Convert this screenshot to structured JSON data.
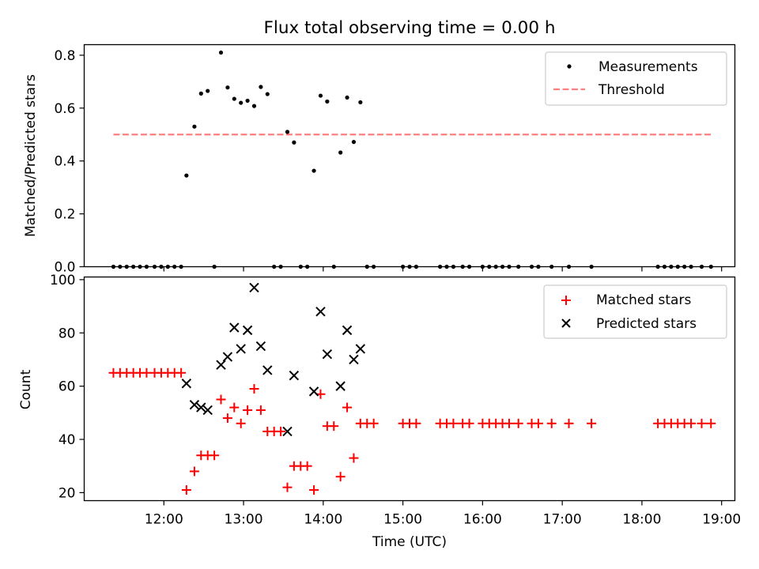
{
  "title": "Flux total observing time = 0.00 h",
  "chart_data": [
    {
      "type": "scatter",
      "panel": "top",
      "ylabel": "Matched/Predicted stars",
      "ylim": [
        0,
        0.84
      ],
      "yticks": [
        0.0,
        0.2,
        0.4,
        0.6,
        0.8
      ],
      "ytick_labels": [
        "0.0",
        "0.2",
        "0.4",
        "0.6",
        "0.8"
      ],
      "legend": {
        "position": "top-right",
        "entries": [
          {
            "label": "Measurements",
            "marker": "dot",
            "color": "#000000"
          },
          {
            "label": "Threshold",
            "marker": "dashed-line",
            "color": "#ff7f7f"
          }
        ]
      },
      "threshold": {
        "value": 0.5,
        "x_range": [
          "11:22",
          "18:52"
        ],
        "color": "#ff7f7f"
      },
      "series": [
        {
          "name": "Measurements",
          "color": "#000000",
          "points": [
            [
              "11:22",
              0
            ],
            [
              "11:27",
              0
            ],
            [
              "11:32",
              0
            ],
            [
              "11:37",
              0
            ],
            [
              "11:42",
              0
            ],
            [
              "11:47",
              0
            ],
            [
              "11:53",
              0
            ],
            [
              "11:58",
              0
            ],
            [
              "12:03",
              0
            ],
            [
              "12:08",
              0
            ],
            [
              "12:13",
              0
            ],
            [
              "12:17",
              0.345
            ],
            [
              "12:23",
              0.53
            ],
            [
              "12:28",
              0.655
            ],
            [
              "12:33",
              0.665
            ],
            [
              "12:38",
              0
            ],
            [
              "12:43",
              0.81
            ],
            [
              "12:48",
              0.678
            ],
            [
              "12:53",
              0.635
            ],
            [
              "12:58",
              0.62
            ],
            [
              "13:03",
              0.628
            ],
            [
              "13:08",
              0.608
            ],
            [
              "13:13",
              0.68
            ],
            [
              "13:18",
              0.653
            ],
            [
              "13:23",
              0
            ],
            [
              "13:28",
              0
            ],
            [
              "13:33",
              0.51
            ],
            [
              "13:38",
              0.47
            ],
            [
              "13:43",
              0
            ],
            [
              "13:48",
              0
            ],
            [
              "13:53",
              0.363
            ],
            [
              "13:58",
              0.647
            ],
            [
              "14:03",
              0.625
            ],
            [
              "14:08",
              0
            ],
            [
              "14:13",
              0.432
            ],
            [
              "14:18",
              0.64
            ],
            [
              "14:23",
              0.472
            ],
            [
              "14:28",
              0.622
            ],
            [
              "14:33",
              0
            ],
            [
              "14:38",
              0
            ],
            [
              "15:00",
              0
            ],
            [
              "15:05",
              0
            ],
            [
              "15:10",
              0
            ],
            [
              "15:28",
              0
            ],
            [
              "15:33",
              0
            ],
            [
              "15:38",
              0
            ],
            [
              "15:45",
              0
            ],
            [
              "15:50",
              0
            ],
            [
              "16:00",
              0
            ],
            [
              "16:05",
              0
            ],
            [
              "16:10",
              0
            ],
            [
              "16:15",
              0
            ],
            [
              "16:20",
              0
            ],
            [
              "16:27",
              0
            ],
            [
              "16:37",
              0
            ],
            [
              "16:42",
              0
            ],
            [
              "16:52",
              0
            ],
            [
              "17:05",
              0
            ],
            [
              "17:22",
              0
            ],
            [
              "18:12",
              0
            ],
            [
              "18:17",
              0
            ],
            [
              "18:22",
              0
            ],
            [
              "18:27",
              0
            ],
            [
              "18:32",
              0
            ],
            [
              "18:37",
              0
            ],
            [
              "18:45",
              0
            ],
            [
              "18:52",
              0
            ]
          ]
        }
      ]
    },
    {
      "type": "scatter",
      "panel": "bottom",
      "xlabel": "Time (UTC)",
      "ylabel": "Count",
      "ylim": [
        17,
        101
      ],
      "yticks": [
        20,
        40,
        60,
        80,
        100
      ],
      "ytick_labels": [
        "20",
        "40",
        "60",
        "80",
        "100"
      ],
      "xlim": [
        "11:00",
        "19:10"
      ],
      "xticks": [
        "12:00",
        "13:00",
        "14:00",
        "15:00",
        "16:00",
        "17:00",
        "18:00",
        "19:00"
      ],
      "legend": {
        "position": "top-right",
        "entries": [
          {
            "label": "Matched stars",
            "marker": "plus",
            "color": "#ff0000"
          },
          {
            "label": "Predicted stars",
            "marker": "x",
            "color": "#000000"
          }
        ]
      },
      "series": [
        {
          "name": "Matched stars",
          "marker": "plus",
          "color": "#ff0000",
          "points": [
            [
              "11:22",
              65
            ],
            [
              "11:27",
              65
            ],
            [
              "11:32",
              65
            ],
            [
              "11:37",
              65
            ],
            [
              "11:42",
              65
            ],
            [
              "11:47",
              65
            ],
            [
              "11:53",
              65
            ],
            [
              "11:58",
              65
            ],
            [
              "12:03",
              65
            ],
            [
              "12:08",
              65
            ],
            [
              "12:13",
              65
            ],
            [
              "12:17",
              21
            ],
            [
              "12:23",
              28
            ],
            [
              "12:28",
              34
            ],
            [
              "12:33",
              34
            ],
            [
              "12:38",
              34
            ],
            [
              "12:43",
              55
            ],
            [
              "12:48",
              48
            ],
            [
              "12:53",
              52
            ],
            [
              "12:58",
              46
            ],
            [
              "13:03",
              51
            ],
            [
              "13:08",
              59
            ],
            [
              "13:13",
              51
            ],
            [
              "13:18",
              43
            ],
            [
              "13:23",
              43
            ],
            [
              "13:28",
              43
            ],
            [
              "13:33",
              22
            ],
            [
              "13:38",
              30
            ],
            [
              "13:43",
              30
            ],
            [
              "13:48",
              30
            ],
            [
              "13:53",
              21
            ],
            [
              "13:58",
              57
            ],
            [
              "14:03",
              45
            ],
            [
              "14:08",
              45
            ],
            [
              "14:13",
              26
            ],
            [
              "14:18",
              52
            ],
            [
              "14:23",
              33
            ],
            [
              "14:28",
              46
            ],
            [
              "14:33",
              46
            ],
            [
              "14:38",
              46
            ],
            [
              "15:00",
              46
            ],
            [
              "15:05",
              46
            ],
            [
              "15:10",
              46
            ],
            [
              "15:28",
              46
            ],
            [
              "15:33",
              46
            ],
            [
              "15:38",
              46
            ],
            [
              "15:45",
              46
            ],
            [
              "15:50",
              46
            ],
            [
              "16:00",
              46
            ],
            [
              "16:05",
              46
            ],
            [
              "16:10",
              46
            ],
            [
              "16:15",
              46
            ],
            [
              "16:20",
              46
            ],
            [
              "16:27",
              46
            ],
            [
              "16:37",
              46
            ],
            [
              "16:42",
              46
            ],
            [
              "16:52",
              46
            ],
            [
              "17:05",
              46
            ],
            [
              "17:22",
              46
            ],
            [
              "18:12",
              46
            ],
            [
              "18:17",
              46
            ],
            [
              "18:22",
              46
            ],
            [
              "18:27",
              46
            ],
            [
              "18:32",
              46
            ],
            [
              "18:37",
              46
            ],
            [
              "18:45",
              46
            ],
            [
              "18:52",
              46
            ]
          ]
        },
        {
          "name": "Predicted stars",
          "marker": "x",
          "color": "#000000",
          "points": [
            [
              "12:17",
              61
            ],
            [
              "12:23",
              53
            ],
            [
              "12:28",
              52
            ],
            [
              "12:33",
              51
            ],
            [
              "12:43",
              68
            ],
            [
              "12:48",
              71
            ],
            [
              "12:53",
              82
            ],
            [
              "12:58",
              74
            ],
            [
              "13:03",
              81
            ],
            [
              "13:08",
              97
            ],
            [
              "13:13",
              75
            ],
            [
              "13:18",
              66
            ],
            [
              "13:33",
              43
            ],
            [
              "13:38",
              64
            ],
            [
              "13:53",
              58
            ],
            [
              "13:58",
              88
            ],
            [
              "14:03",
              72
            ],
            [
              "14:13",
              60
            ],
            [
              "14:18",
              81
            ],
            [
              "14:23",
              70
            ],
            [
              "14:28",
              74
            ]
          ]
        }
      ]
    }
  ]
}
